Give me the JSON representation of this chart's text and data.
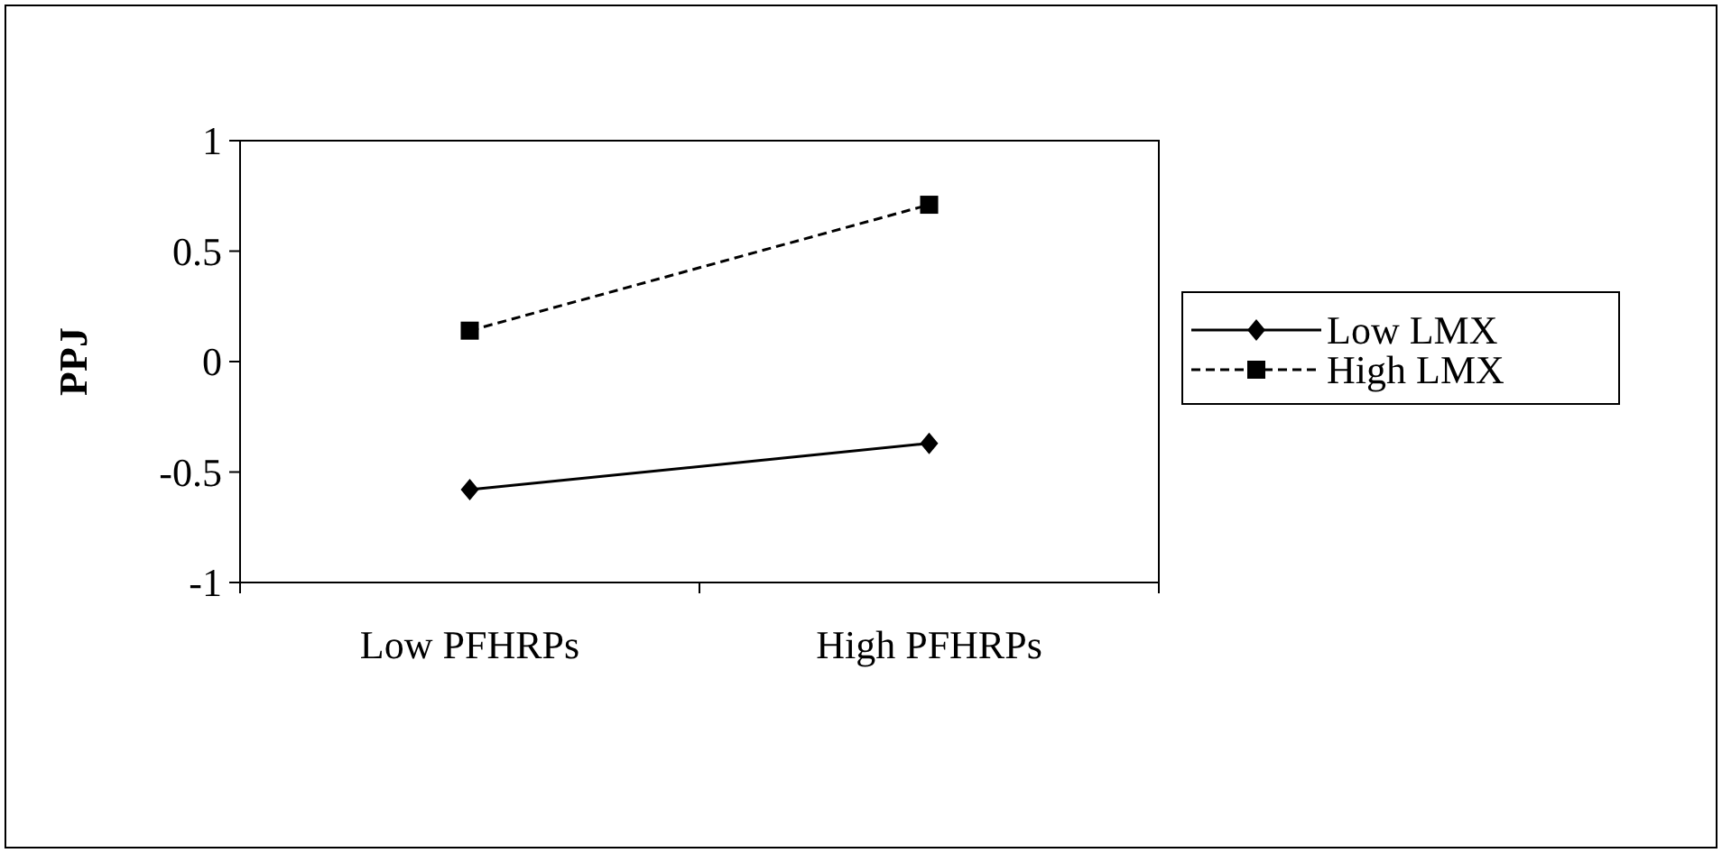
{
  "chart_data": {
    "type": "line",
    "ylabel": "PPJ",
    "categories": [
      "Low PFHRPs",
      "High PFHRPs"
    ],
    "series": [
      {
        "name": "Low LMX",
        "color": "#000000",
        "values": [
          -0.58,
          -0.37
        ],
        "marker": "diamond",
        "line_style": "solid"
      },
      {
        "name": "High LMX",
        "color": "#000000",
        "values": [
          0.14,
          0.71
        ],
        "marker": "square",
        "line_style": "dashed"
      }
    ],
    "ylim": [
      -1,
      1
    ],
    "yticks": [
      -1,
      -0.5,
      0,
      0.5,
      1
    ],
    "grid": false,
    "legend": "right"
  }
}
